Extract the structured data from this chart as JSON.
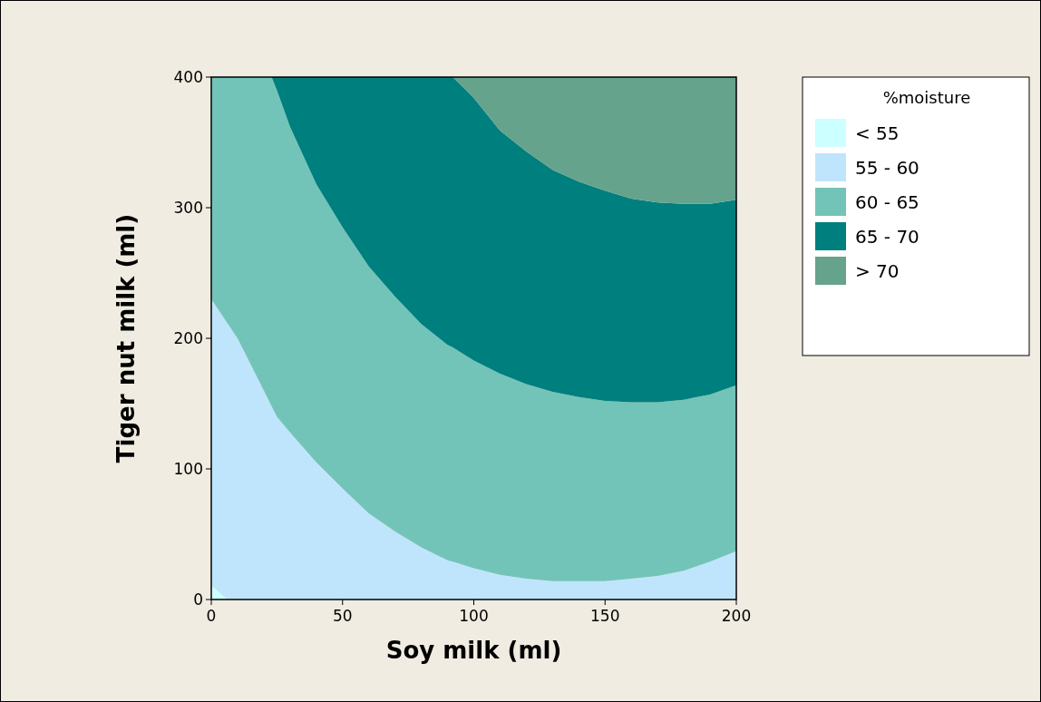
{
  "chart_data": {
    "type": "area",
    "stacked": true,
    "xlabel": "Soy milk (ml)",
    "ylabel": "Tiger nut milk (ml)",
    "legend_title": "%moisture",
    "legend": "right",
    "x": [
      0,
      6,
      10,
      20,
      23,
      25,
      30,
      40,
      50,
      60,
      70,
      80,
      90,
      92,
      100,
      110,
      120,
      130,
      140,
      150,
      160,
      170,
      180,
      190,
      200
    ],
    "xlim": [
      0,
      200
    ],
    "xticks": [
      0,
      50,
      100,
      150,
      200
    ],
    "ylim": [
      0,
      400
    ],
    "yticks": [
      0,
      100,
      200,
      300,
      400
    ],
    "series": [
      {
        "name": "< 55",
        "color": "#ccffff",
        "values": [
          11,
          0,
          0,
          0,
          0,
          0,
          0,
          0,
          0,
          0,
          0,
          0,
          0,
          0,
          0,
          0,
          0,
          0,
          0,
          0,
          0,
          0,
          0,
          0,
          0
        ]
      },
      {
        "name": "55 - 60",
        "color": "#bfe5fc",
        "values": [
          219,
          212,
          200,
          160,
          148,
          140,
          128,
          105,
          85,
          66,
          52,
          40,
          30,
          29,
          24,
          19,
          16,
          14,
          14,
          14,
          16,
          18,
          22,
          29,
          37
        ]
      },
      {
        "name": "60 - 65",
        "color": "#73c4b8",
        "values": [
          170,
          188,
          200,
          240,
          252,
          250,
          234,
          213,
          200,
          189,
          180,
          171,
          165,
          164,
          159,
          154,
          149,
          145,
          141,
          138,
          135,
          133,
          131,
          128,
          127
        ]
      },
      {
        "name": "65 - 70",
        "color": "#007f7f",
        "values": [
          0,
          0,
          0,
          0,
          0,
          10,
          38,
          82,
          115,
          145,
          168,
          189,
          205,
          207,
          201,
          186,
          178,
          170,
          165,
          161,
          156,
          153,
          150,
          146,
          142
        ]
      },
      {
        "name": "> 70",
        "color": "#66a38c",
        "values": [
          0,
          0,
          0,
          0,
          0,
          0,
          0,
          0,
          0,
          0,
          0,
          0,
          0,
          0,
          16,
          41,
          57,
          71,
          80,
          87,
          93,
          96,
          97,
          97,
          94
        ]
      }
    ]
  }
}
